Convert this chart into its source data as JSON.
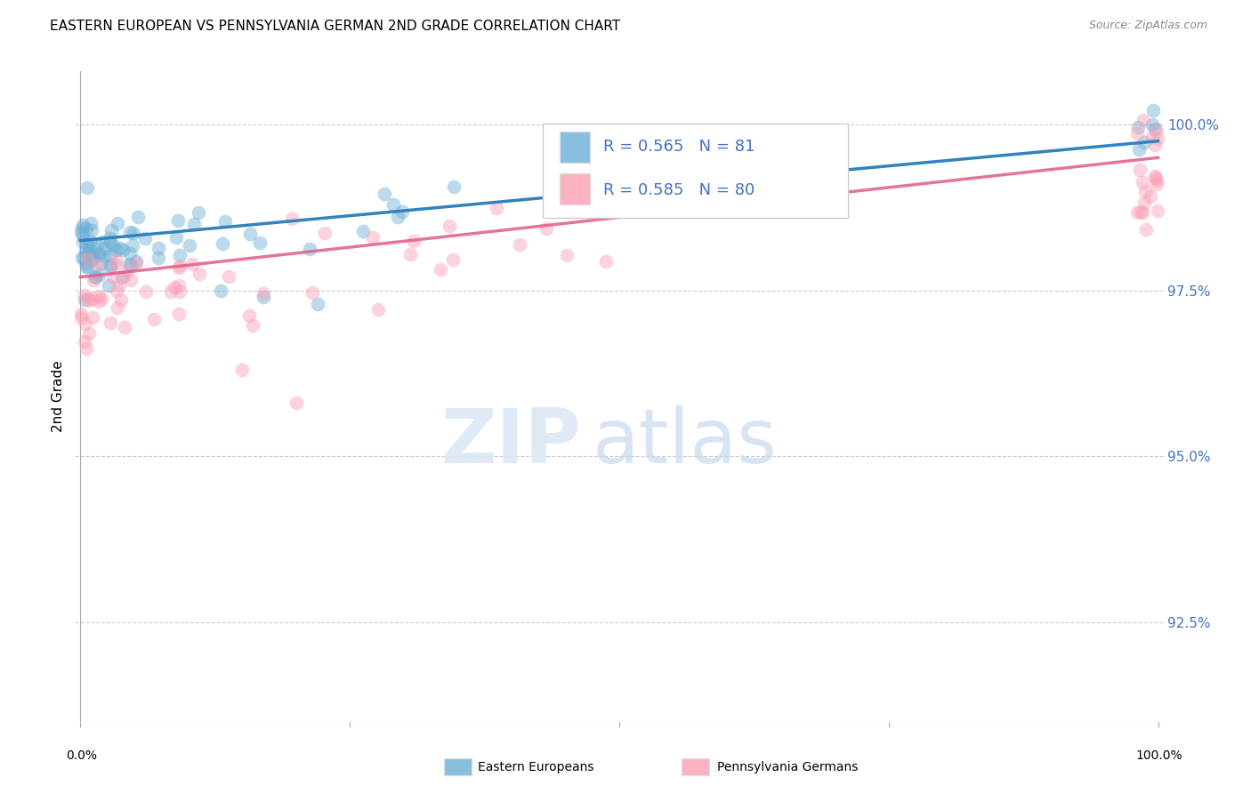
{
  "title": "EASTERN EUROPEAN VS PENNSYLVANIA GERMAN 2ND GRADE CORRELATION CHART",
  "source": "Source: ZipAtlas.com",
  "ylabel": "2nd Grade",
  "ytick_vals": [
    92.5,
    95.0,
    97.5,
    100.0
  ],
  "ylim": [
    91.0,
    100.8
  ],
  "xlim": [
    -0.005,
    1.005
  ],
  "color_blue": "#6baed6",
  "color_pink": "#fa9fb5",
  "color_blue_line": "#3182bd",
  "color_pink_line": "#e05c8a",
  "background_color": "#ffffff",
  "grid_color": "#cccccc",
  "tick_label_color": "#4472c4",
  "watermark_zip": "ZIP",
  "watermark_atlas": "atlas",
  "legend_labels": [
    "Eastern Europeans",
    "Pennsylvania Germans"
  ],
  "blue_R": 0.565,
  "blue_N": 81,
  "pink_R": 0.585,
  "pink_N": 80,
  "blue_line_y0": 98.25,
  "blue_line_y1": 99.75,
  "pink_line_y0": 97.7,
  "pink_line_y1": 99.5
}
